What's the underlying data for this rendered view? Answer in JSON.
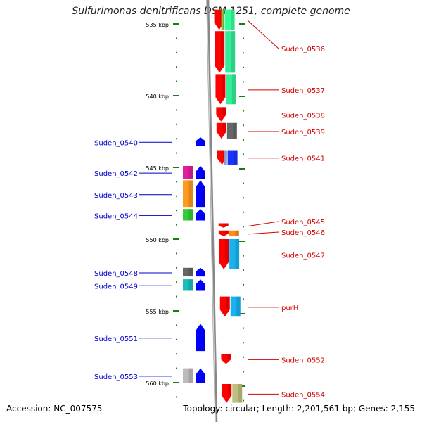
{
  "title": "Sulfurimonas denitrificans DSM 1251, complete genome",
  "footer": {
    "accession": "Accession: NC_007575",
    "summary": "Topology: circular; Length: 2,201,561 bp; Genes: 2,155"
  },
  "scale": {
    "labels": [
      "535 kbp",
      "540 kbp",
      "545 kbp",
      "550 kbp",
      "555 kbp",
      "560 kbp"
    ]
  },
  "colors": {
    "forward_label": "#d40000",
    "reverse_label": "#0000cc",
    "forward_gene": "#ff0000",
    "reverse_gene": "#0000ff",
    "tick": "#1a7a1a",
    "backbone": "#888888"
  },
  "chart_data": {
    "type": "genome-map",
    "unit": "kbp",
    "range": [
      533.9,
      561.5
    ],
    "genes": [
      {
        "name": "Suden_0536",
        "strand": "+",
        "start": 534.0,
        "end": 535.5,
        "cog": "#33ff99",
        "cog2": "#8fbf3f"
      },
      {
        "name": "Suden_0536",
        "strand": "+",
        "start": 535.5,
        "end": 538.5,
        "cog": "#33ee99"
      },
      {
        "name": "Suden_0537",
        "strand": "+",
        "start": 538.5,
        "end": 540.7,
        "cog": "#33ee99"
      },
      {
        "name": "Suden_0538",
        "strand": "+",
        "start": 540.8,
        "end": 541.9,
        "cog": null
      },
      {
        "name": "Suden_0539",
        "strand": "+",
        "start": 541.9,
        "end": 543.1,
        "cog": "#666666"
      },
      {
        "name": "Suden_0540",
        "strand": "-",
        "start": 542.9,
        "end": 543.6,
        "cog": null
      },
      {
        "name": "Suden_0541",
        "strand": "+",
        "start": 543.8,
        "end": 544.9,
        "cog": "#1a33ff",
        "cog2": "#8899cc"
      },
      {
        "name": "Suden_0542",
        "strand": "-",
        "start": 544.9,
        "end": 545.9,
        "cog": "#e0209a"
      },
      {
        "name": "Suden_0543",
        "strand": "-",
        "start": 545.9,
        "end": 547.9,
        "cog": "#ff9a20"
      },
      {
        "name": "Suden_0544",
        "strand": "-",
        "start": 547.9,
        "end": 548.8,
        "cog": "#33cc33"
      },
      {
        "name": "Suden_0545",
        "strand": "+",
        "start": 548.9,
        "end": 549.3,
        "cog": null
      },
      {
        "name": "Suden_0546",
        "strand": "+",
        "start": 549.4,
        "end": 549.9,
        "cog": "#ff8c1a"
      },
      {
        "name": "Suden_0547",
        "strand": "+",
        "start": 550.0,
        "end": 552.2,
        "cog": "#1ab2ee"
      },
      {
        "name": "Suden_0548",
        "strand": "-",
        "start": 552.0,
        "end": 552.7,
        "cog": "#666666"
      },
      {
        "name": "Suden_0549",
        "strand": "-",
        "start": 552.8,
        "end": 553.7,
        "cog": "#1abbbb"
      },
      {
        "name": "purH",
        "strand": "+",
        "start": 554.0,
        "end": 555.5,
        "cog": "#1ab2ee"
      },
      {
        "name": "Suden_0551",
        "strand": "-",
        "start": 555.9,
        "end": 557.9,
        "cog": null
      },
      {
        "name": "Suden_0552",
        "strand": "+",
        "start": 558.0,
        "end": 558.8,
        "cog": null
      },
      {
        "name": "Suden_0553",
        "strand": "-",
        "start": 559.0,
        "end": 560.1,
        "cog": "#bbbbbb"
      },
      {
        "name": "Suden_0554",
        "strand": "+",
        "start": 560.1,
        "end": 561.5,
        "cog": "#bfbf80"
      }
    ]
  }
}
